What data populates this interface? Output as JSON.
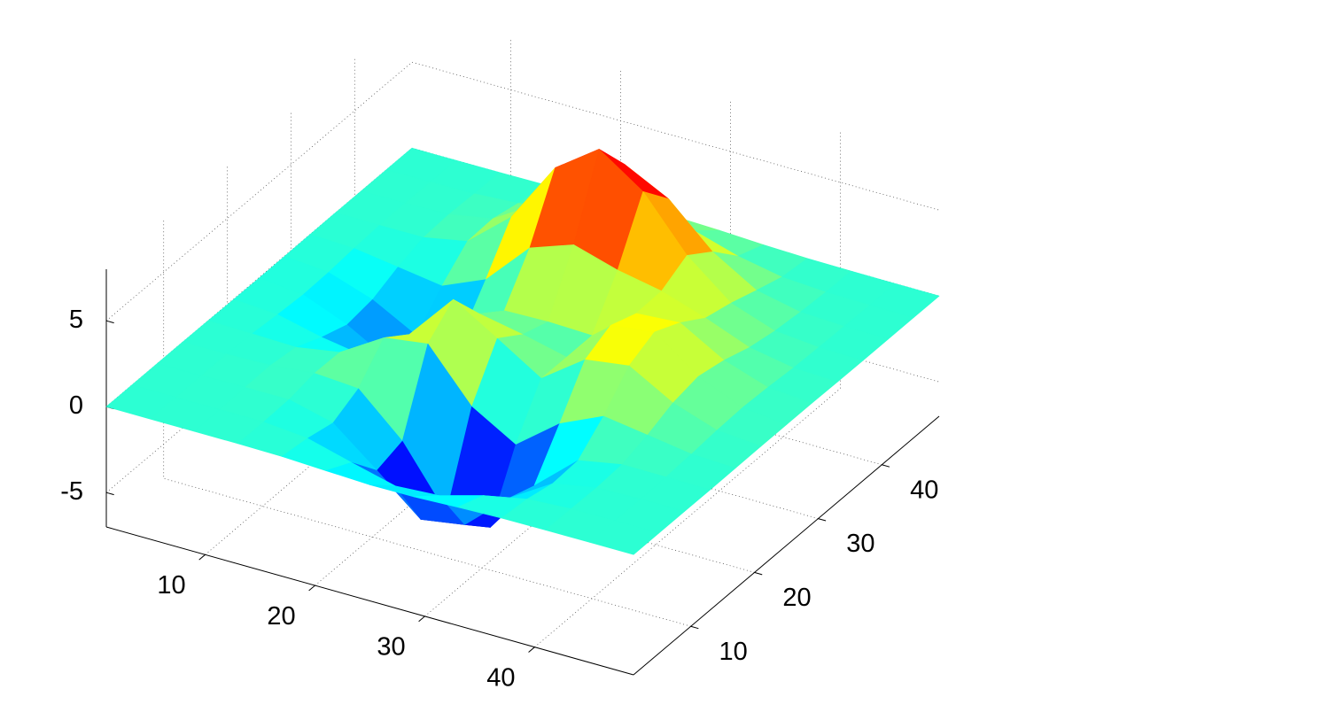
{
  "chart_data": {
    "type": "surface",
    "colormap": "jet",
    "grid": true,
    "x": [
      1,
      5,
      9,
      13,
      17,
      21,
      25,
      29,
      33,
      37,
      41,
      45,
      49
    ],
    "y": [
      1,
      5,
      9,
      13,
      17,
      21,
      25,
      29,
      33,
      37,
      41,
      45,
      49
    ],
    "z": [
      [
        0,
        0,
        0,
        0,
        -0.03,
        -0.14,
        -0.24,
        -0.22,
        -0.11,
        -0.03,
        -0.01,
        0,
        0
      ],
      [
        0,
        0,
        0.01,
        0,
        -0.23,
        -0.92,
        -1.57,
        -1.41,
        -0.69,
        -0.18,
        -0.03,
        0,
        0
      ],
      [
        0,
        0.01,
        0.05,
        0.05,
        -0.59,
        -2.64,
        -4.76,
        -4.35,
        -2.1,
        -0.53,
        -0.06,
        0,
        0
      ],
      [
        0,
        0.01,
        0.08,
        0.33,
        0.15,
        -2.19,
        -5.68,
        -5.76,
        -2.63,
        -0.44,
        0.04,
        0.03,
        0
      ],
      [
        -0.01,
        -0.06,
        -0.13,
        0.3,
        1.86,
        2.22,
        -0.72,
        -2.22,
        -0.27,
        0.88,
        0.5,
        0.11,
        0.01
      ],
      [
        -0.03,
        -0.2,
        -0.8,
        -1.21,
        0.8,
        3.55,
        2.0,
        0.39,
        2.2,
        2.56,
        1.12,
        0.24,
        0.03
      ],
      [
        -0.04,
        -0.3,
        -1.33,
        -2.77,
        -1.65,
        1.48,
        0.98,
        0.37,
        2.94,
        3.27,
        1.41,
        0.3,
        0.03
      ],
      [
        -0.03,
        -0.25,
        -1.12,
        -2.49,
        -2.0,
        0.39,
        0.46,
        0.38,
        2.38,
        2.56,
        1.09,
        0.23,
        0.03
      ],
      [
        -0.01,
        -0.11,
        -0.48,
        -0.86,
        0.23,
        2.79,
        3.69,
        2.93,
        2.43,
        1.58,
        0.58,
        0.11,
        0.01
      ],
      [
        0,
        -0.02,
        -0.01,
        0.48,
        2.61,
        6.2,
        8.0,
        6.25,
        3.25,
        1.19,
        0.29,
        0.05,
        0
      ],
      [
        0,
        0.01,
        0.08,
        0.55,
        2.1,
        4.56,
        5.86,
        4.57,
        2.21,
        0.68,
        0.13,
        0.02,
        0
      ],
      [
        0,
        0,
        0.03,
        0.19,
        0.69,
        1.47,
        1.88,
        1.47,
        0.7,
        0.2,
        0.04,
        0,
        0
      ],
      [
        0,
        0,
        0.01,
        0.03,
        0.11,
        0.23,
        0.3,
        0.23,
        0.11,
        0.03,
        0.01,
        0,
        0
      ]
    ],
    "xlim": [
      1,
      49
    ],
    "ylim": [
      1,
      49
    ],
    "zlim": [
      -7,
      8
    ],
    "xticks": [
      10,
      20,
      30,
      40
    ],
    "yticks": [
      10,
      20,
      30,
      40
    ],
    "zticks": [
      -5,
      0,
      5
    ]
  }
}
